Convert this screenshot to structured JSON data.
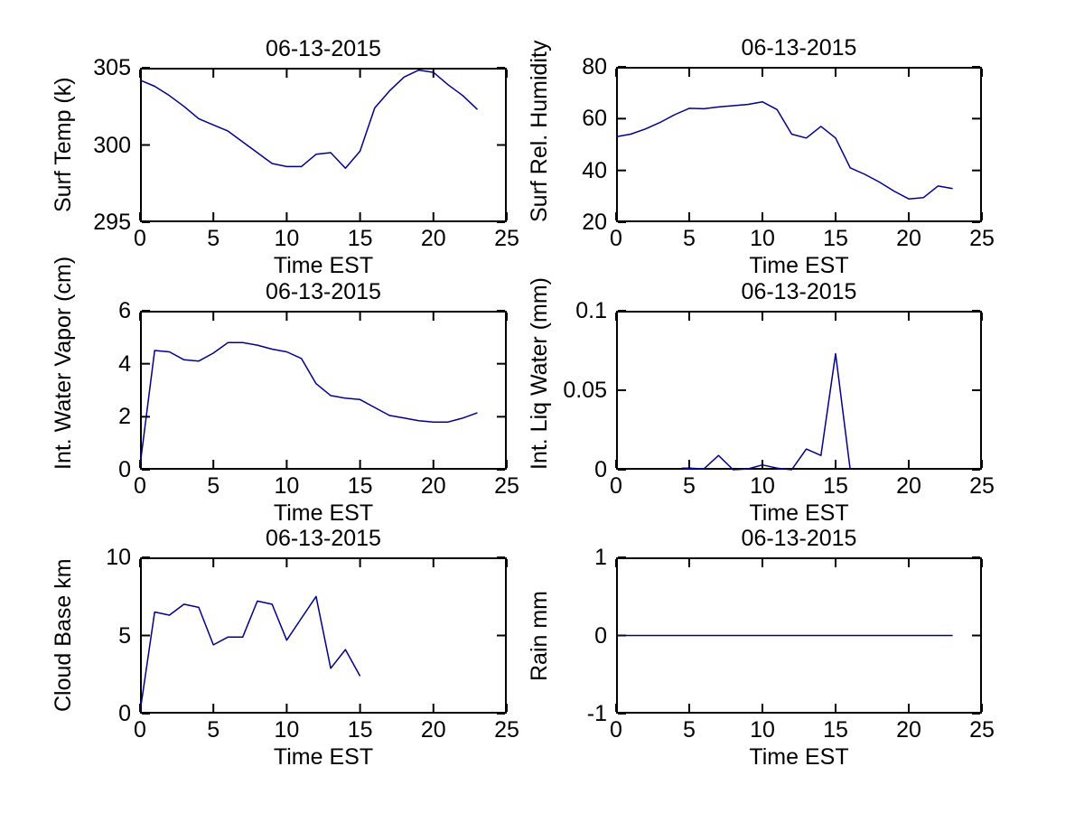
{
  "styles": {
    "line_color": "#00008b",
    "axis_color": "#000000",
    "background": "#ffffff"
  },
  "chart_data": [
    {
      "type": "line",
      "title": "06-13-2015",
      "xlabel": "Time EST",
      "ylabel": "Surf Temp (k)",
      "xlim": [
        0,
        25
      ],
      "ylim": [
        295,
        305
      ],
      "xticks": [
        0,
        5,
        10,
        15,
        20,
        25
      ],
      "xtick_labels": [
        "0",
        "5",
        "10",
        "15",
        "20",
        "25"
      ],
      "yticks": [
        295,
        300,
        305
      ],
      "ytick_labels": [
        "295",
        "300",
        "305"
      ],
      "grid": false,
      "x": [
        0,
        1,
        2,
        3,
        4,
        5,
        6,
        7,
        8,
        9,
        10,
        11,
        12,
        13,
        14,
        15,
        16,
        17,
        18,
        19,
        20,
        21,
        22,
        23
      ],
      "y": [
        304.2,
        303.8,
        303.2,
        302.5,
        301.7,
        301.3,
        300.9,
        300.2,
        299.5,
        298.8,
        298.6,
        298.6,
        299.4,
        299.5,
        298.5,
        299.6,
        302.4,
        303.5,
        304.4,
        304.85,
        304.7,
        303.9,
        303.2,
        302.3
      ]
    },
    {
      "type": "line",
      "title": "06-13-2015",
      "xlabel": "Time EST",
      "ylabel": "Surf Rel. Humidity",
      "xlim": [
        0,
        25
      ],
      "ylim": [
        20,
        80
      ],
      "xticks": [
        0,
        5,
        10,
        15,
        20,
        25
      ],
      "xtick_labels": [
        "0",
        "5",
        "10",
        "15",
        "20",
        "25"
      ],
      "yticks": [
        20,
        40,
        60,
        80
      ],
      "ytick_labels": [
        "20",
        "40",
        "60",
        "80"
      ],
      "grid": false,
      "x": [
        0,
        1,
        2,
        3,
        4,
        5,
        6,
        7,
        8,
        9,
        10,
        11,
        12,
        13,
        14,
        15,
        16,
        17,
        18,
        19,
        20,
        21,
        22,
        23
      ],
      "y": [
        53,
        54,
        56,
        58.5,
        61.5,
        64,
        63.8,
        64.5,
        65,
        65.5,
        66.5,
        63.5,
        54,
        52.5,
        57,
        52.5,
        41,
        38.5,
        35.5,
        32,
        29,
        29.5,
        34,
        33
      ]
    },
    {
      "type": "line",
      "title": "06-13-2015",
      "xlabel": "Time EST",
      "ylabel": "Int. Water Vapor (cm)",
      "xlim": [
        0,
        25
      ],
      "ylim": [
        0,
        6
      ],
      "xticks": [
        0,
        5,
        10,
        15,
        20,
        25
      ],
      "xtick_labels": [
        "0",
        "5",
        "10",
        "15",
        "20",
        "25"
      ],
      "yticks": [
        0,
        2,
        4,
        6
      ],
      "ytick_labels": [
        "0",
        "2",
        "4",
        "6"
      ],
      "grid": false,
      "x": [
        0,
        1,
        2,
        3,
        4,
        5,
        6,
        7,
        8,
        9,
        10,
        11,
        12,
        13,
        14,
        15,
        16,
        17,
        18,
        19,
        20,
        21,
        22,
        23
      ],
      "y": [
        0.15,
        4.5,
        4.45,
        4.15,
        4.1,
        4.4,
        4.8,
        4.8,
        4.7,
        4.55,
        4.45,
        4.2,
        3.25,
        2.8,
        2.7,
        2.65,
        2.35,
        2.05,
        1.95,
        1.85,
        1.8,
        1.8,
        1.95,
        2.15
      ]
    },
    {
      "type": "line",
      "title": "06-13-2015",
      "xlabel": "Time EST",
      "ylabel": "Int. Liq Water (mm)",
      "xlim": [
        0,
        25
      ],
      "ylim": [
        0,
        0.1
      ],
      "xticks": [
        0,
        5,
        10,
        15,
        20,
        25
      ],
      "xtick_labels": [
        "0",
        "5",
        "10",
        "15",
        "20",
        "25"
      ],
      "yticks": [
        0,
        0.05,
        0.1
      ],
      "ytick_labels": [
        "0",
        "0.05",
        "0.1"
      ],
      "grid": false,
      "x": [
        4.5,
        5,
        6,
        7,
        8,
        9,
        10,
        11,
        12,
        13,
        14,
        15,
        16
      ],
      "y": [
        0.001,
        0.001,
        0.0005,
        0.009,
        0,
        0.0005,
        0.003,
        0.001,
        0,
        0.013,
        0.009,
        0.073,
        0
      ]
    },
    {
      "type": "line",
      "title": "06-13-2015",
      "xlabel": "Time EST",
      "ylabel": "Cloud Base km",
      "xlim": [
        0,
        25
      ],
      "ylim": [
        0,
        10
      ],
      "xticks": [
        0,
        5,
        10,
        15,
        20,
        25
      ],
      "xtick_labels": [
        "0",
        "5",
        "10",
        "15",
        "20",
        "25"
      ],
      "yticks": [
        0,
        5,
        10
      ],
      "ytick_labels": [
        "0",
        "5",
        "10"
      ],
      "grid": false,
      "x": [
        0,
        1,
        2,
        3,
        4,
        5,
        6,
        7,
        8,
        9,
        10,
        11,
        12,
        13,
        14,
        15
      ],
      "y": [
        0.1,
        6.5,
        6.3,
        7.0,
        6.8,
        4.4,
        4.9,
        4.9,
        7.2,
        7.0,
        4.7,
        6.1,
        7.5,
        2.9,
        4.1,
        2.4
      ]
    },
    {
      "type": "line",
      "title": "06-13-2015",
      "xlabel": "Time EST",
      "ylabel": "Rain mm",
      "xlim": [
        0,
        25
      ],
      "ylim": [
        -1,
        1
      ],
      "xticks": [
        0,
        5,
        10,
        15,
        20,
        25
      ],
      "xtick_labels": [
        "0",
        "5",
        "10",
        "15",
        "20",
        "25"
      ],
      "yticks": [
        -1,
        0,
        1
      ],
      "ytick_labels": [
        "-1",
        "0",
        "1"
      ],
      "grid": false,
      "x": [
        0,
        23
      ],
      "y": [
        0,
        0
      ]
    }
  ]
}
